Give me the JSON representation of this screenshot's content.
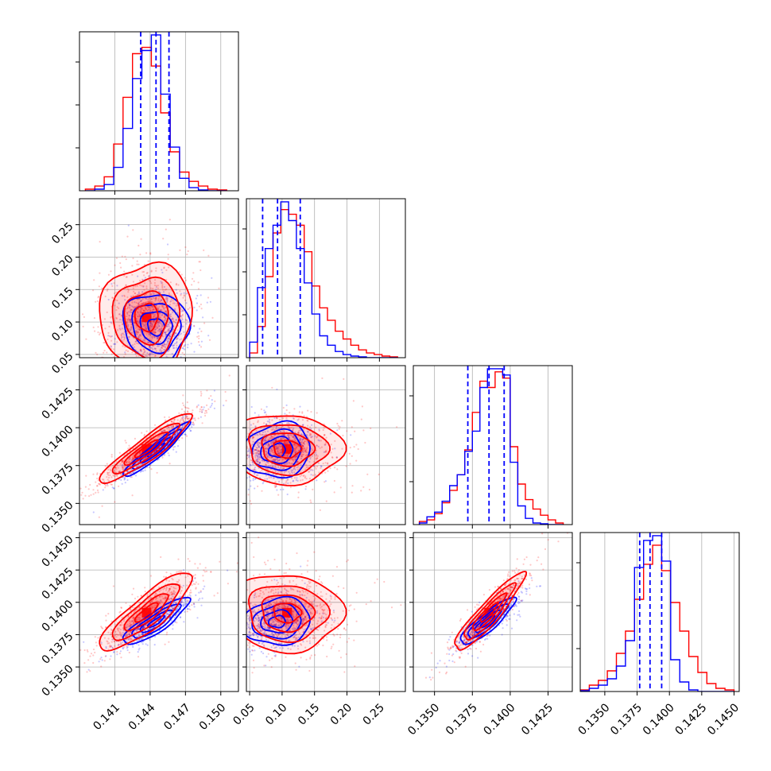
{
  "chart_data": {
    "type": "corner",
    "grid": true,
    "series": [
      {
        "name": "",
        "color": "#ff0000"
      },
      {
        "name": "",
        "color": "#0000ff"
      }
    ],
    "parameters": [
      {
        "range": [
          0.138,
          0.1515
        ],
        "ticks": [
          0.141,
          0.144,
          0.147,
          0.15
        ],
        "tick_labels": [
          "0.141",
          "0.144",
          "0.147",
          "0.150"
        ]
      },
      {
        "range": [
          0.045,
          0.29
        ],
        "ticks": [
          0.05,
          0.1,
          0.15,
          0.2,
          0.25
        ],
        "tick_labels": [
          "0.05",
          "0.10",
          "0.15",
          "0.20",
          "0.25"
        ]
      },
      {
        "range": [
          0.1336,
          0.1441
        ],
        "ticks": [
          0.135,
          0.1375,
          0.14,
          0.1425
        ],
        "tick_labels": [
          "0.1350",
          "0.1375",
          "0.1400",
          "0.1425"
        ]
      },
      {
        "range": [
          0.1331,
          0.1454
        ],
        "ticks": [
          0.135,
          0.1375,
          0.14,
          0.1425,
          0.145
        ],
        "tick_labels": [
          "0.1350",
          "0.1375",
          "0.1400",
          "0.1425",
          "0.1450"
        ]
      }
    ],
    "marginals": [
      {
        "quantiles": [
          0.1432,
          0.1445,
          0.1456
        ],
        "edges": [
          0.1385,
          0.1393,
          0.1401,
          0.1409,
          0.1417,
          0.1425,
          0.1433,
          0.1441,
          0.1449,
          0.1457,
          0.1465,
          0.1473,
          0.1481,
          0.1489,
          0.1497,
          0.1505
        ],
        "red": [
          1,
          3,
          9,
          30,
          60,
          88,
          92,
          80,
          50,
          25,
          12,
          6,
          3,
          1,
          0.5
        ],
        "blue": [
          0,
          1,
          4,
          15,
          40,
          72,
          90,
          100,
          62,
          28,
          8,
          2,
          0.5,
          0,
          0
        ]
      },
      {
        "quantiles": [
          0.07,
          0.093,
          0.128
        ],
        "edges": [
          0.05,
          0.062,
          0.074,
          0.086,
          0.098,
          0.11,
          0.122,
          0.134,
          0.146,
          0.158,
          0.17,
          0.182,
          0.194,
          0.206,
          0.218,
          0.23,
          0.242,
          0.254,
          0.266,
          0.278
        ],
        "red": [
          3,
          20,
          52,
          80,
          95,
          92,
          85,
          68,
          46,
          32,
          24,
          17,
          12,
          8,
          5,
          3,
          2,
          1,
          0.5
        ],
        "blue": [
          10,
          45,
          70,
          85,
          100,
          88,
          70,
          48,
          28,
          14,
          8,
          4,
          2,
          1,
          0.5,
          0,
          0,
          0,
          0
        ]
      },
      {
        "quantiles": [
          0.1372,
          0.1386,
          0.1396
        ],
        "edges": [
          0.134,
          0.1345,
          0.135,
          0.1355,
          0.136,
          0.1365,
          0.137,
          0.1375,
          0.138,
          0.1385,
          0.139,
          0.1395,
          0.14,
          0.1405,
          0.141,
          0.1415,
          0.142,
          0.1425,
          0.143,
          0.1435
        ],
        "red": [
          2,
          3,
          7,
          14,
          22,
          32,
          48,
          72,
          92,
          88,
          98,
          94,
          50,
          26,
          16,
          10,
          6,
          3,
          1
        ],
        "blue": [
          1,
          5,
          8,
          15,
          25,
          32,
          47,
          60,
          88,
          100,
          100,
          96,
          40,
          12,
          4,
          1,
          0.5,
          0,
          0
        ]
      },
      {
        "quantiles": [
          0.1377,
          0.1385,
          0.1394
        ],
        "edges": [
          0.1331,
          0.1338,
          0.1345,
          0.1352,
          0.1359,
          0.1366,
          0.1373,
          0.138,
          0.1387,
          0.1394,
          0.1401,
          0.1408,
          0.1415,
          0.1422,
          0.1429,
          0.1436,
          0.1443,
          0.145
        ],
        "red": [
          1,
          4,
          7,
          13,
          24,
          38,
          58,
          80,
          92,
          76,
          56,
          38,
          22,
          12,
          5,
          2,
          1
        ],
        "blue": [
          0.5,
          2,
          4,
          8,
          16,
          32,
          78,
          95,
          98,
          82,
          20,
          6,
          1,
          0,
          0,
          0,
          0
        ]
      }
    ],
    "joints": [
      {
        "i": 1,
        "j": 0,
        "red": {
          "mean": [
            0.1437,
            0.1075
          ],
          "sd": [
            0.00195,
            0.042
          ],
          "rho": 0.02
        },
        "blue": {
          "mean": [
            0.1445,
            0.0925
          ],
          "sd": [
            0.0014,
            0.026
          ],
          "rho": -0.05
        }
      },
      {
        "i": 2,
        "j": 0,
        "red": {
          "mean": [
            0.1437,
            0.1386
          ],
          "sd": [
            0.00195,
            0.00115
          ],
          "rho": 0.92
        },
        "blue": {
          "mean": [
            0.1445,
            0.1385
          ],
          "sd": [
            0.0014,
            0.0009
          ],
          "rho": 0.95
        }
      },
      {
        "i": 2,
        "j": 1,
        "red": {
          "mean": [
            0.1075,
            0.1386
          ],
          "sd": [
            0.042,
            0.00115
          ],
          "rho": -0.05
        },
        "blue": {
          "mean": [
            0.0925,
            0.1385
          ],
          "sd": [
            0.026,
            0.0009
          ],
          "rho": 0.12
        }
      },
      {
        "i": 3,
        "j": 0,
        "red": {
          "mean": [
            0.1437,
            0.1392
          ],
          "sd": [
            0.00195,
            0.0015
          ],
          "rho": 0.85
        },
        "blue": {
          "mean": [
            0.1445,
            0.1385
          ],
          "sd": [
            0.0014,
            0.0009
          ],
          "rho": 0.86
        }
      },
      {
        "i": 3,
        "j": 1,
        "red": {
          "mean": [
            0.1075,
            0.1392
          ],
          "sd": [
            0.042,
            0.0015
          ],
          "rho": -0.05
        },
        "blue": {
          "mean": [
            0.0925,
            0.1385
          ],
          "sd": [
            0.026,
            0.0009
          ],
          "rho": 0.1
        }
      },
      {
        "i": 3,
        "j": 2,
        "red": {
          "mean": [
            0.1386,
            0.1392
          ],
          "sd": [
            0.00115,
            0.0015
          ],
          "rho": 0.92
        },
        "blue": {
          "mean": [
            0.1385,
            0.1385
          ],
          "sd": [
            0.0009,
            0.0009
          ],
          "rho": 0.88
        }
      }
    ]
  }
}
